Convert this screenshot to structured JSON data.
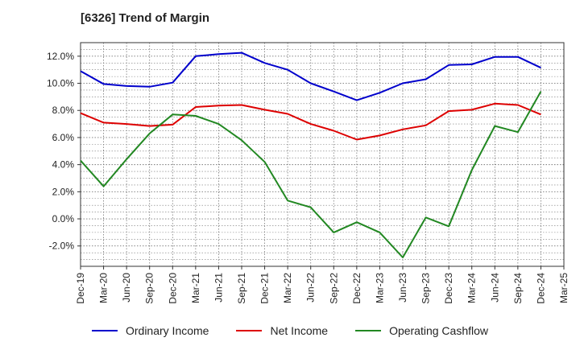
{
  "title": "[6326]  Trend of Margin",
  "chart_data": {
    "type": "line",
    "title": "[6326]  Trend of Margin",
    "xlabel": "",
    "ylabel": "",
    "x": [
      "Dec-19",
      "Mar-20",
      "Jun-20",
      "Sep-20",
      "Dec-20",
      "Mar-21",
      "Jun-21",
      "Sep-21",
      "Dec-21",
      "Mar-22",
      "Jun-22",
      "Sep-22",
      "Dec-22",
      "Mar-23",
      "Jun-23",
      "Sep-23",
      "Dec-23",
      "Mar-24",
      "Jun-24",
      "Sep-24",
      "Dec-24",
      "Mar-25"
    ],
    "ylim": [
      -3.5,
      13.0
    ],
    "yticks": [
      12.0,
      10.0,
      8.0,
      6.0,
      4.0,
      2.0,
      0.0,
      -2.0
    ],
    "ytick_labels": [
      "12.0%",
      "10.0%",
      "8.0%",
      "6.0%",
      "4.0%",
      "2.0%",
      "0.0%",
      "-2.0%"
    ],
    "grid": true,
    "legend_position": "bottom",
    "series": [
      {
        "name": "Ordinary Income",
        "color": "#0000cc",
        "values": [
          10.9,
          9.95,
          9.8,
          9.75,
          10.05,
          12.0,
          12.15,
          12.25,
          11.5,
          11.0,
          10.0,
          9.4,
          8.75,
          9.3,
          10.0,
          10.3,
          11.35,
          11.4,
          11.95,
          11.95,
          11.15,
          null
        ]
      },
      {
        "name": "Net Income",
        "color": "#dd0000",
        "values": [
          7.8,
          7.1,
          7.0,
          6.85,
          6.95,
          8.25,
          8.35,
          8.4,
          8.05,
          7.75,
          7.0,
          6.5,
          5.85,
          6.15,
          6.6,
          6.9,
          7.95,
          8.05,
          8.5,
          8.4,
          7.7,
          null
        ]
      },
      {
        "name": "Operating Cashflow",
        "color": "#228822",
        "values": [
          4.3,
          2.4,
          4.4,
          6.3,
          7.7,
          7.6,
          7.0,
          5.8,
          4.2,
          1.35,
          0.85,
          -1.0,
          -0.25,
          -1.0,
          -2.85,
          0.1,
          -0.55,
          3.6,
          6.85,
          6.4,
          9.4,
          null
        ]
      }
    ]
  }
}
